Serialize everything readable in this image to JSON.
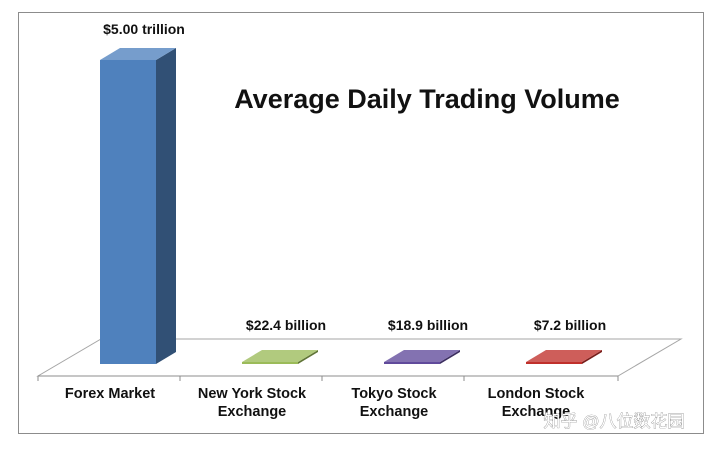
{
  "chart_data": {
    "type": "bar",
    "title": "Average Daily Trading Volume",
    "categories": [
      [
        "Forex Market"
      ],
      [
        "New York Stock",
        "Exchange"
      ],
      [
        "Tokyo Stock",
        "Exchange"
      ],
      [
        "London Stock",
        "Exchange"
      ]
    ],
    "values": [
      5000,
      22.4,
      18.9,
      7.2
    ],
    "unit": "billion USD",
    "data_labels": [
      "$5.00 trillion",
      "$22.4 billion",
      "$18.9 billion",
      "$7.2 billion"
    ],
    "colors": [
      "#4f81bd",
      "#9bbb59",
      "#604a9b",
      "#c0302b"
    ],
    "ylim": [
      0,
      5000
    ],
    "grid": false,
    "legend": "none"
  },
  "watermark": "知乎 @八位数花园"
}
